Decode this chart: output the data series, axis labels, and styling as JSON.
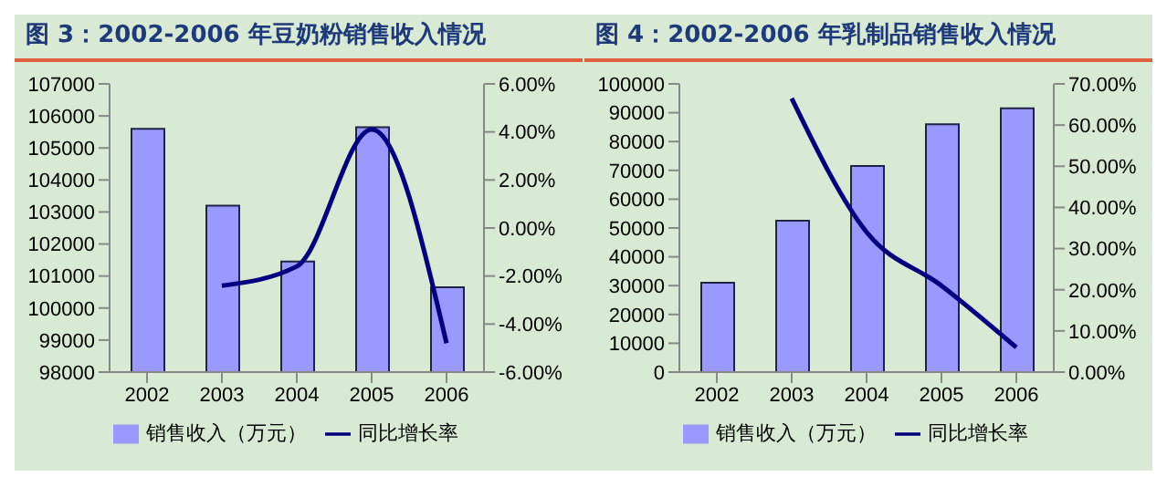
{
  "chart_data": [
    {
      "type": "bar",
      "title": "图 3：2002-2006 年豆奶粉销售收入情况",
      "categories": [
        "2002",
        "2003",
        "2004",
        "2005",
        "2006"
      ],
      "series": [
        {
          "name": "销售收入（万元）",
          "color": "#9999ff",
          "values": [
            105600,
            103200,
            101450,
            105650,
            100650
          ]
        },
        {
          "name": "同比增长率",
          "type": "line",
          "axis": "y2",
          "color": "#000080",
          "values": [
            null,
            -2.4,
            -1.6,
            4.1,
            -4.8
          ]
        }
      ],
      "ylim": [
        98000,
        107000
      ],
      "yticks": [
        98000,
        99000,
        100000,
        101000,
        102000,
        103000,
        104000,
        105000,
        106000,
        107000
      ],
      "y2lim": [
        -6,
        6
      ],
      "y2ticks": [
        {
          "value": -6,
          "label": "-6.00%"
        },
        {
          "value": -4,
          "label": "-4.00%"
        },
        {
          "value": -2,
          "label": "-2.00%"
        },
        {
          "value": 0,
          "label": "0.00%"
        },
        {
          "value": 2,
          "label": "2.00%"
        },
        {
          "value": 4,
          "label": "4.00%"
        },
        {
          "value": 6,
          "label": "6.00%"
        }
      ],
      "legend": "bottom",
      "grid": false,
      "marker": "none"
    },
    {
      "type": "bar",
      "title": "图 4：2002-2006 年乳制品销售收入情况",
      "categories": [
        "2002",
        "2003",
        "2004",
        "2005",
        "2006"
      ],
      "series": [
        {
          "name": "销售收入（万元）",
          "color": "#9999ff",
          "values": [
            31000,
            52500,
            71500,
            86000,
            91500
          ]
        },
        {
          "name": "同比增长率",
          "type": "line",
          "axis": "y2",
          "color": "#000080",
          "values": [
            null,
            66.5,
            34,
            21,
            6
          ]
        }
      ],
      "ylim": [
        0,
        100000
      ],
      "yticks": [
        0,
        10000,
        20000,
        30000,
        40000,
        50000,
        60000,
        70000,
        80000,
        90000,
        100000
      ],
      "y2lim": [
        0,
        70
      ],
      "y2ticks": [
        {
          "value": 0,
          "label": "0.00%"
        },
        {
          "value": 10,
          "label": "10.00%"
        },
        {
          "value": 20,
          "label": "20.00%"
        },
        {
          "value": 30,
          "label": "30.00%"
        },
        {
          "value": 40,
          "label": "40.00%"
        },
        {
          "value": 50,
          "label": "50.00%"
        },
        {
          "value": 60,
          "label": "60.00%"
        },
        {
          "value": 70,
          "label": "70.00%"
        }
      ],
      "legend": "bottom",
      "grid": false,
      "marker": "none"
    }
  ]
}
